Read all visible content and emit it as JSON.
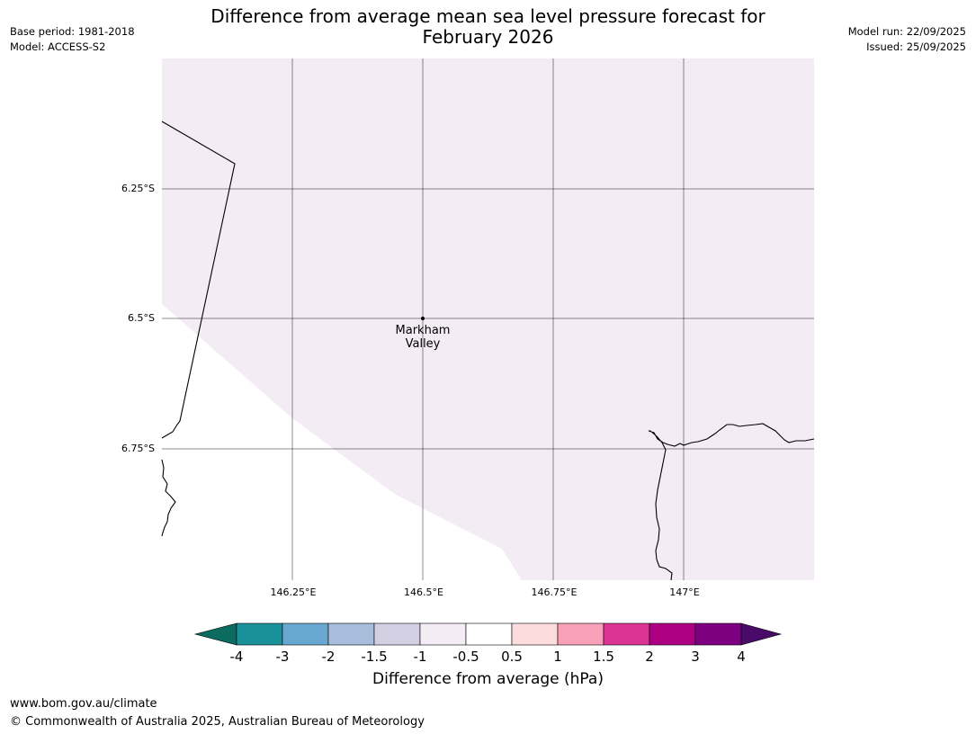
{
  "header": {
    "title_line1": "Difference from average mean sea level pressure forecast for",
    "title_line2": "February 2026",
    "base_period": "Base period: 1981-2018",
    "model": "Model: ACCESS-S2",
    "model_run": "Model run: 22/09/2025",
    "issued": "Issued: 25/09/2025"
  },
  "map": {
    "fill_color": "#f3ecf5",
    "latitude_labels": [
      "6.25°S",
      "6.5°S",
      "6.75°S"
    ],
    "longitude_labels": [
      "146.25°E",
      "146.5°E",
      "146.75°E",
      "147°E"
    ],
    "place": {
      "name_line1": "Markham",
      "name_line2": "Valley"
    }
  },
  "colorbar": {
    "title": "Difference from average (hPa)",
    "tick_labels": [
      "-4",
      "-3",
      "-2",
      "-1.5",
      "-1",
      "-0.5",
      "0.5",
      "1",
      "1.5",
      "2",
      "3",
      "4"
    ],
    "under_color": "#0b6b5e",
    "over_color": "#4a0a6a",
    "colors": [
      "#1a9098",
      "#68a8d0",
      "#a8bcdc",
      "#d4d0e4",
      "#f3ecf5",
      "#ffffff",
      "#fcdcdc",
      "#f8a0b8",
      "#dc3494",
      "#ac0080",
      "#7c0080"
    ]
  },
  "footer": {
    "url": "www.bom.gov.au/climate",
    "copyright": "© Commonwealth of Australia 2025, Australian Bureau of Meteorology"
  }
}
